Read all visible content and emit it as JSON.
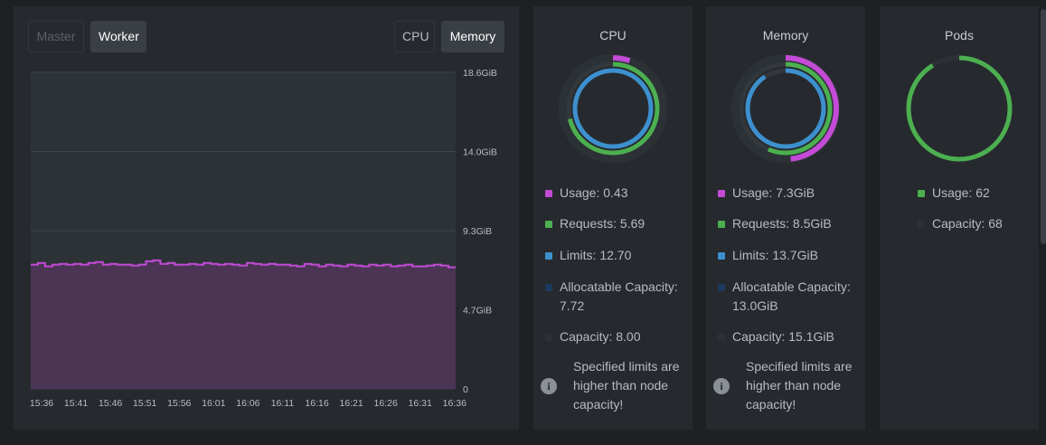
{
  "chart_panel": {
    "node_buttons": [
      {
        "label": "Master",
        "state": "disabled"
      },
      {
        "label": "Worker",
        "state": "active"
      }
    ],
    "metric_buttons": [
      {
        "label": "CPU",
        "state": "inactive"
      },
      {
        "label": "Memory",
        "state": "active"
      }
    ]
  },
  "chart_data": {
    "type": "area",
    "title": "",
    "xlabel": "",
    "ylabel": "",
    "x_ticks": [
      "15:36",
      "15:41",
      "15:46",
      "15:51",
      "15:56",
      "16:01",
      "16:06",
      "16:11",
      "16:16",
      "16:21",
      "16:26",
      "16:31",
      "16:36"
    ],
    "y_ticks": [
      "0",
      "4.7GiB",
      "9.3GiB",
      "14.0GiB",
      "18.6GiB"
    ],
    "ylim": [
      0,
      18.6
    ],
    "unit": "GiB",
    "grid": true,
    "series": [
      {
        "color": "#c34bd6",
        "fill": "#4b3454",
        "values": [
          7.3,
          7.4,
          7.2,
          7.3,
          7.35,
          7.3,
          7.35,
          7.3,
          7.4,
          7.45,
          7.3,
          7.35,
          7.3,
          7.3,
          7.25,
          7.3,
          7.5,
          7.55,
          7.35,
          7.4,
          7.3,
          7.3,
          7.35,
          7.3,
          7.4,
          7.35,
          7.3,
          7.35,
          7.3,
          7.25,
          7.4,
          7.35,
          7.3,
          7.35,
          7.3,
          7.3,
          7.25,
          7.2,
          7.35,
          7.3,
          7.2,
          7.3,
          7.25,
          7.2,
          7.3,
          7.25,
          7.2,
          7.3,
          7.25,
          7.3,
          7.2,
          7.25,
          7.3,
          7.2,
          7.2,
          7.25,
          7.3,
          7.25,
          7.15
        ]
      }
    ]
  },
  "cards": {
    "cpu": {
      "title": "CPU",
      "rings": {
        "usage": 0.43,
        "requests": 5.69,
        "limits": 12.7,
        "allocatable": 7.72,
        "capacity": 8.0
      },
      "legend": [
        {
          "label": "Usage: 0.43",
          "color": "#c34bd6"
        },
        {
          "label": "Requests: 5.69",
          "color": "#4caf50"
        },
        {
          "label": "Limits: 12.70",
          "color": "#3d90ce"
        },
        {
          "label": "Allocatable Capacity: 7.72",
          "color": "#1c3a5e"
        },
        {
          "label": "Capacity: 8.00",
          "color": "#2c3135"
        }
      ],
      "note": "Specified limits are higher than node capacity!"
    },
    "memory": {
      "title": "Memory",
      "rings": {
        "usage": 7.3,
        "requests": 8.5,
        "limits": 13.7,
        "allocatable": 13.0,
        "capacity": 15.1
      },
      "legend": [
        {
          "label": "Usage: 7.3GiB",
          "color": "#c34bd6"
        },
        {
          "label": "Requests: 8.5GiB",
          "color": "#4caf50"
        },
        {
          "label": "Limits: 13.7GiB",
          "color": "#3d90ce"
        },
        {
          "label": "Allocatable Capacity: 13.0GiB",
          "color": "#1c3a5e"
        },
        {
          "label": "Capacity: 15.1GiB",
          "color": "#2c3135"
        }
      ],
      "note": "Specified limits are higher than node capacity!"
    },
    "pods": {
      "title": "Pods",
      "rings": {
        "usage": 62,
        "capacity": 68
      },
      "legend": [
        {
          "label": "Usage: 62",
          "color": "#4caf50"
        },
        {
          "label": "Capacity: 68",
          "color": "#2c3135"
        }
      ]
    }
  },
  "colors": {
    "usage": "#c34bd6",
    "requests": "#4caf50",
    "limits": "#3d90ce",
    "track": "#33383d",
    "outer_track": "#2c3135"
  },
  "icons": {
    "note": "info-icon"
  }
}
